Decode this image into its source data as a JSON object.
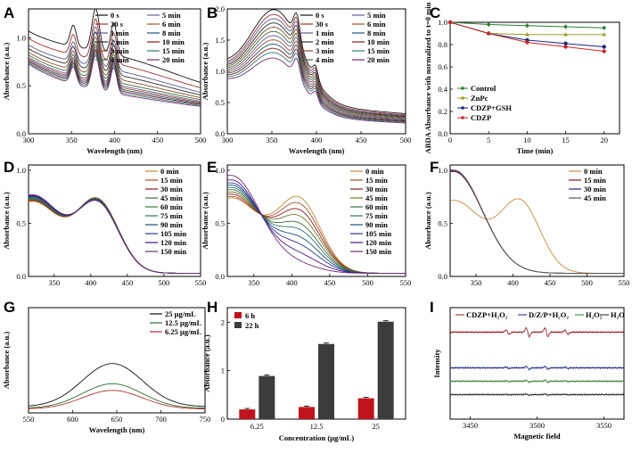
{
  "figure": {
    "title": ""
  },
  "chart_data": [
    {
      "panel": "A",
      "type": "line",
      "xlabel": "Wavelength (nm)",
      "ylabel": "Absorbance (a.u.)",
      "xlim": [
        300,
        500
      ],
      "ylim": [
        0,
        1.3
      ],
      "xticks": [
        300,
        350,
        400,
        450,
        500
      ],
      "yticks": [
        0.0,
        0.5,
        1.0
      ],
      "legend_cols": 2,
      "model": {
        "b0": 0.03,
        "k": 0.011,
        "pcen": 400,
        "pw": 105,
        "peaks": [
          {
            "c": 352,
            "w": 5,
            "h": 0.24
          },
          {
            "c": 378,
            "w": 6,
            "h": 0.48
          },
          {
            "c": 399,
            "w": 5,
            "h": 0.36
          }
        ]
      },
      "series": [
        {
          "name": "0 s",
          "color": "#111111",
          "base": 0.62,
          "pa": 0.22
        },
        {
          "name": "30 s",
          "color": "#9a3030",
          "base": 0.56,
          "pa": 0.18
        },
        {
          "name": "1 min",
          "color": "#5a5a8a",
          "base": 0.5,
          "pa": 0.16
        },
        {
          "name": "2 min",
          "color": "#2a2a2a",
          "base": 0.47,
          "pa": 0.14
        },
        {
          "name": "3 min",
          "color": "#8a4a2a",
          "base": 0.44,
          "pa": 0.12
        },
        {
          "name": "4 min",
          "color": "#3b6e3b",
          "base": 0.42,
          "pa": 0.1
        },
        {
          "name": "5 min",
          "color": "#6a5a9a",
          "base": 0.4,
          "pa": 0.09
        },
        {
          "name": "6 min",
          "color": "#a0522d",
          "base": 0.39,
          "pa": 0.08
        },
        {
          "name": "8 min",
          "color": "#1f4f7a",
          "base": 0.38,
          "pa": 0.07
        },
        {
          "name": "10 min",
          "color": "#7a1a1a",
          "base": 0.37,
          "pa": 0.06
        },
        {
          "name": "15 min",
          "color": "#2f7a7a",
          "base": 0.36,
          "pa": 0.05
        },
        {
          "name": "20 min",
          "color": "#6b2f6b",
          "base": 0.35,
          "pa": 0.04
        }
      ]
    },
    {
      "panel": "B",
      "type": "line",
      "xlabel": "Wavelength (nm)",
      "ylabel": "Absorbance (a.u.)",
      "xlim": [
        300,
        500
      ],
      "ylim": [
        0,
        2.0
      ],
      "xticks": [
        300,
        350,
        400,
        450,
        500
      ],
      "yticks": [
        0.0,
        0.5,
        1.0,
        1.5,
        2.0
      ],
      "legend_cols": 2,
      "model": {
        "b0": 0.01,
        "k": 0.018,
        "pcen": 355,
        "pw": 40,
        "peaks": [
          {
            "c": 378,
            "w": 5,
            "h": 0.2
          },
          {
            "c": 399,
            "w": 4,
            "h": 0.1
          }
        ]
      },
      "series": [
        {
          "name": "0 s",
          "color": "#111111",
          "base": 0.45,
          "pa": 1.35
        },
        {
          "name": "30 s",
          "color": "#9a3030",
          "base": 0.42,
          "pa": 1.3
        },
        {
          "name": "1 min",
          "color": "#5a5a8a",
          "base": 0.4,
          "pa": 1.25
        },
        {
          "name": "2 min",
          "color": "#2a2a2a",
          "base": 0.38,
          "pa": 1.2
        },
        {
          "name": "3 min",
          "color": "#8a4a2a",
          "base": 0.36,
          "pa": 1.15
        },
        {
          "name": "4 min",
          "color": "#3b6e3b",
          "base": 0.34,
          "pa": 1.1
        },
        {
          "name": "5 min",
          "color": "#6a5a9a",
          "base": 0.32,
          "pa": 1.05
        },
        {
          "name": "6 min",
          "color": "#a0522d",
          "base": 0.3,
          "pa": 1.0
        },
        {
          "name": "8 min",
          "color": "#1f4f7a",
          "base": 0.28,
          "pa": 0.95
        },
        {
          "name": "10 min",
          "color": "#7a1a1a",
          "base": 0.26,
          "pa": 0.9
        },
        {
          "name": "15 min",
          "color": "#2f7a7a",
          "base": 0.24,
          "pa": 0.85
        },
        {
          "name": "20 min",
          "color": "#6b2f6b",
          "base": 0.22,
          "pa": 0.78
        }
      ]
    },
    {
      "panel": "C",
      "type": "line_markers",
      "xlabel": "Time (min)",
      "ylabel": "ABDA Absorbance with normalized to t=0 min",
      "xlim": [
        0,
        22
      ],
      "ylim": [
        0.0,
        1.0
      ],
      "xticks": [
        0,
        5,
        10,
        15,
        20
      ],
      "yticks": [
        0.0,
        0.2,
        0.4,
        0.6,
        0.8,
        1.0
      ],
      "x": [
        0,
        5,
        10,
        15,
        20
      ],
      "series": [
        {
          "name": "Control",
          "color": "#2e7d32",
          "marker": "diamond",
          "values": [
            1.0,
            0.98,
            0.97,
            0.96,
            0.95
          ]
        },
        {
          "name": "ZnPc",
          "color": "#9e9d24",
          "marker": "tri",
          "values": [
            1.0,
            0.9,
            0.89,
            0.89,
            0.89
          ]
        },
        {
          "name": "CDZP+GSH",
          "color": "#1a237e",
          "marker": "circle",
          "values": [
            1.0,
            0.9,
            0.84,
            0.81,
            0.78
          ]
        },
        {
          "name": "CDZP",
          "color": "#c62828",
          "marker": "circle",
          "values": [
            1.0,
            0.9,
            0.82,
            0.78,
            0.74
          ]
        }
      ]
    },
    {
      "panel": "D",
      "type": "line",
      "xlabel": "",
      "ylabel": "Absorbance (a.u.)",
      "xlim": [
        315,
        550
      ],
      "ylim": [
        0,
        1.05
      ],
      "xticks": [
        350,
        400,
        450,
        500,
        550
      ],
      "yticks": [
        0.0,
        0.5,
        1.0
      ],
      "legend_cols": 1,
      "legend_colors_only": true,
      "model": {
        "b0": 0.03,
        "k": 0.0,
        "pcen": 410,
        "pw": 40,
        "uvamp": 0.7,
        "uvk": 0.011,
        "peaks": []
      },
      "series": [
        {
          "name": "0 min",
          "color": "#c28a3a",
          "base": 0.0,
          "pa": 0.66,
          "uv": 0.96
        },
        {
          "name": "15 min",
          "color": "#a0522d",
          "base": 0.0,
          "pa": 0.66,
          "uv": 0.97
        },
        {
          "name": "30 min",
          "color": "#8b1a1a",
          "base": 0.0,
          "pa": 0.65,
          "uv": 0.98
        },
        {
          "name": "45 min",
          "color": "#3b6e3b",
          "base": 0.0,
          "pa": 0.65,
          "uv": 0.99
        },
        {
          "name": "60 min",
          "color": "#2e7d32",
          "base": 0.0,
          "pa": 0.65,
          "uv": 1.0
        },
        {
          "name": "75 min",
          "color": "#2f6e6e",
          "base": 0.0,
          "pa": 0.64,
          "uv": 1.01
        },
        {
          "name": "90 min",
          "color": "#1f4f7a",
          "base": 0.0,
          "pa": 0.64,
          "uv": 1.02
        },
        {
          "name": "105 min",
          "color": "#283593",
          "base": 0.0,
          "pa": 0.64,
          "uv": 1.03
        },
        {
          "name": "120 min",
          "color": "#4a148c",
          "base": 0.0,
          "pa": 0.63,
          "uv": 1.04
        },
        {
          "name": "150 min",
          "color": "#6b2f6b",
          "base": 0.0,
          "pa": 0.63,
          "uv": 1.05
        }
      ]
    },
    {
      "panel": "E",
      "type": "line",
      "xlabel": "",
      "ylabel": "Absorbance (a.u.)",
      "xlim": [
        315,
        550
      ],
      "ylim": [
        0,
        1.05
      ],
      "xticks": [
        350,
        400,
        450,
        500,
        550
      ],
      "yticks": [
        0.0,
        0.5,
        1.0
      ],
      "legend_cols": 1,
      "model": {
        "b0": 0.03,
        "k": 0.0,
        "pcen": 410,
        "pw": 40,
        "uvamp": 0.72,
        "uvk": 0.011,
        "peaks": []
      },
      "series": [
        {
          "name": "0 min",
          "color": "#c28a3a",
          "base": 0.0,
          "pa": 0.67,
          "uv": 0.98
        },
        {
          "name": "15 min",
          "color": "#a0522d",
          "base": 0.0,
          "pa": 0.61,
          "uv": 1.0
        },
        {
          "name": "30 min",
          "color": "#8b1a1a",
          "base": 0.0,
          "pa": 0.55,
          "uv": 1.03
        },
        {
          "name": "45 min",
          "color": "#6a7a2a",
          "base": 0.0,
          "pa": 0.49,
          "uv": 1.06
        },
        {
          "name": "60 min",
          "color": "#3b6e3b",
          "base": 0.0,
          "pa": 0.42,
          "uv": 1.09
        },
        {
          "name": "75 min",
          "color": "#2f6e6e",
          "base": 0.0,
          "pa": 0.36,
          "uv": 1.12
        },
        {
          "name": "90 min",
          "color": "#1f4f7a",
          "base": 0.0,
          "pa": 0.29,
          "uv": 1.15
        },
        {
          "name": "105 min",
          "color": "#283593",
          "base": 0.0,
          "pa": 0.22,
          "uv": 1.18
        },
        {
          "name": "120 min",
          "color": "#4a148c",
          "base": 0.0,
          "pa": 0.14,
          "uv": 1.22
        },
        {
          "name": "150 min",
          "color": "#6b2f6b",
          "base": 0.0,
          "pa": 0.06,
          "uv": 1.28
        }
      ]
    },
    {
      "panel": "F",
      "type": "line",
      "xlabel": "",
      "ylabel": "Absorbance (a.u.)",
      "xlim": [
        315,
        550
      ],
      "ylim": [
        0,
        1.05
      ],
      "xticks": [
        350,
        400,
        450,
        500,
        550
      ],
      "yticks": [
        0.0,
        0.5,
        1.0
      ],
      "legend_cols": 1,
      "model": {
        "b0": 0.03,
        "k": 0.0,
        "pcen": 410,
        "pw": 38,
        "uvamp": 0.72,
        "uvk": 0.011,
        "peaks": []
      },
      "series": [
        {
          "name": "0 min",
          "color": "#c28a3a",
          "base": 0.0,
          "pa": 0.65,
          "uv": 0.95
        },
        {
          "name": "15 min",
          "color": "#8b1a1a",
          "base": 0.0,
          "pa": 0.0,
          "uv": 1.33
        },
        {
          "name": "30 min",
          "color": "#1a237e",
          "base": 0.0,
          "pa": 0.0,
          "uv": 1.34
        },
        {
          "name": "45 min",
          "color": "#5a5a5a",
          "base": 0.0,
          "pa": 0.0,
          "uv": 1.35
        }
      ]
    },
    {
      "panel": "G",
      "type": "line",
      "xlabel": "Wavelength (nm)",
      "ylabel": "Absorbance (a.u.)",
      "xlim": [
        550,
        750
      ],
      "ylim": [
        0,
        0.9
      ],
      "xticks": [
        550,
        600,
        650,
        700,
        750
      ],
      "yticks": [],
      "legend_cols": 1,
      "model": {
        "b0": 0.0,
        "k": 0.0,
        "pcen": 645,
        "pw": 48,
        "peaks": []
      },
      "series": [
        {
          "name": "25 μg/mL",
          "color": "#111111",
          "base": 0.08,
          "pa": 0.37
        },
        {
          "name": "12.5 μg/mL",
          "color": "#2e6b2e",
          "base": 0.06,
          "pa": 0.21
        },
        {
          "name": "6.25 μg/mL",
          "color": "#b03030",
          "base": 0.05,
          "pa": 0.16
        }
      ]
    },
    {
      "panel": "H",
      "type": "bar",
      "xlabel": "Concentration (μg/mL)",
      "ylabel": "Absorbance (a.u.)",
      "ylim": [
        0,
        2.3
      ],
      "yticks": [
        0,
        1,
        2
      ],
      "categories": [
        "6.25",
        "12.5",
        "25"
      ],
      "series": [
        {
          "name": "6 h",
          "color": "#c0141c",
          "values": [
            0.2,
            0.25,
            0.43
          ],
          "err": [
            0.02,
            0.02,
            0.02
          ]
        },
        {
          "name": "22 h",
          "color": "#3c3c3c",
          "values": [
            0.89,
            1.55,
            2.01
          ],
          "err": [
            0.02,
            0.02,
            0.02
          ]
        }
      ]
    },
    {
      "panel": "I",
      "type": "line",
      "xlabel": "Magnetic field",
      "ylabel": "Intensity",
      "xlim": [
        3435,
        3565
      ],
      "xticks": [
        3450,
        3500,
        3550
      ],
      "yticks": [],
      "series": [
        {
          "name": "CDZP+H₂O₂",
          "color": "#8b1a1a",
          "offset": 0.78,
          "amp": 1.0
        },
        {
          "name": "D/Z/P+H₂O₂",
          "color": "#1a237e",
          "offset": 0.46,
          "amp": 0.32
        },
        {
          "name": "H₂O₂",
          "color": "#2e7d32",
          "offset": 0.34,
          "amp": 0.22
        },
        {
          "name": "H₂O",
          "color": "#222222",
          "offset": 0.22,
          "amp": 0.15
        }
      ]
    }
  ],
  "panel_labels": [
    "A",
    "B",
    "C",
    "D",
    "E",
    "F",
    "G",
    "H",
    "I"
  ]
}
